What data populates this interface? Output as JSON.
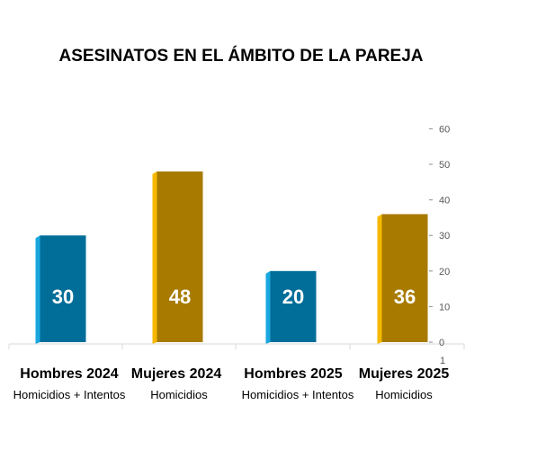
{
  "chart_data": {
    "type": "bar",
    "title": "ASESINATOS EN EL ÁMBITO DE LA PAREJA",
    "categories": [
      {
        "label": "Hombres 2024",
        "sublabel": "Homicidios + Intentos"
      },
      {
        "label": "Mujeres 2024",
        "sublabel": "Homicidios"
      },
      {
        "label": "Hombres 2025",
        "sublabel": "Homicidios + Intentos"
      },
      {
        "label": "Mujeres 2025",
        "sublabel": "Homicidios"
      }
    ],
    "values": [
      30,
      48,
      20,
      36
    ],
    "data_labels": [
      "30",
      "48",
      "20",
      "36"
    ],
    "bar_colors": [
      {
        "front": "#006e99",
        "side": "#1aa7e0"
      },
      {
        "front": "#a87b00",
        "side": "#f6b800"
      },
      {
        "front": "#006e99",
        "side": "#1aa7e0"
      },
      {
        "front": "#a87b00",
        "side": "#f6b800"
      }
    ],
    "y_axis": {
      "position": "right",
      "ylim": [
        0,
        60
      ],
      "ticks": [
        "0",
        "10",
        "20",
        "30",
        "40",
        "50",
        "60"
      ],
      "extra_label": "1"
    },
    "grid": false,
    "legend": "none"
  }
}
